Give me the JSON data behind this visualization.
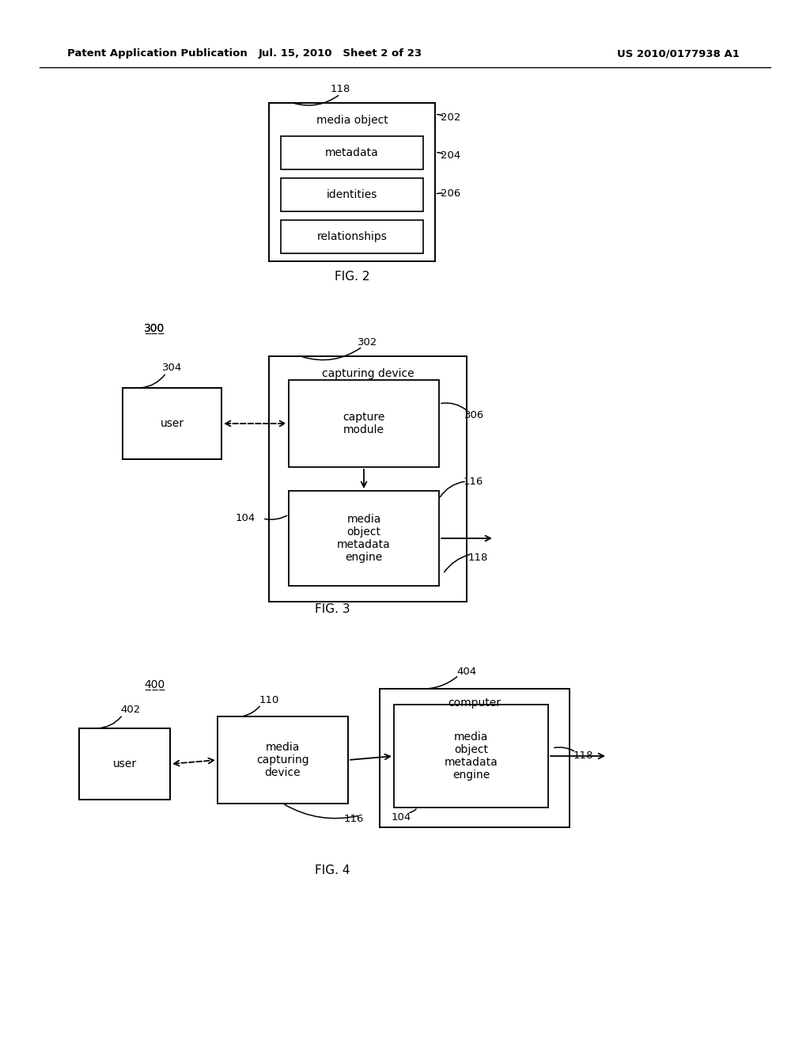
{
  "bg_color": "#ffffff",
  "header_left": "Patent Application Publication",
  "header_mid": "Jul. 15, 2010   Sheet 2 of 23",
  "header_right": "US 2010/0177938 A1"
}
